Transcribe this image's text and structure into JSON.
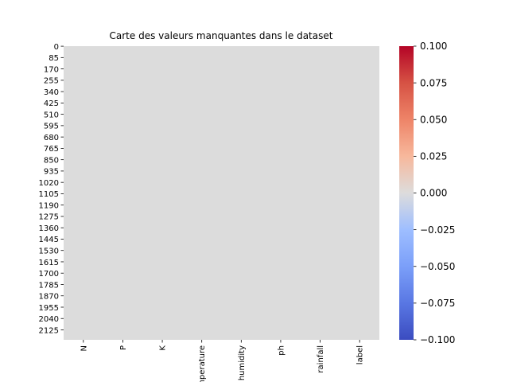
{
  "chart_data": {
    "type": "heatmap",
    "title": "Carte des valeurs manquantes dans le dataset",
    "xlabel": "",
    "ylabel": "",
    "x_categories": [
      "N",
      "P",
      "K",
      "temperature",
      "humidity",
      "ph",
      "rainfall",
      "label"
    ],
    "y_ticks": [
      0,
      85,
      170,
      255,
      340,
      425,
      510,
      595,
      680,
      765,
      850,
      935,
      1020,
      1105,
      1190,
      1275,
      1360,
      1445,
      1530,
      1615,
      1700,
      1785,
      1870,
      1955,
      2040,
      2125
    ],
    "row_count": 2200,
    "cell_value": 0.0,
    "colormap": "coolwarm",
    "cell_color": "#dcdcdc",
    "colorbar": {
      "vmin": -0.1,
      "vmax": 0.1,
      "ticks": [
        "0.100",
        "0.075",
        "0.050",
        "0.025",
        "0.000",
        "−0.025",
        "−0.050",
        "−0.075",
        "−0.100"
      ],
      "tick_values": [
        0.1,
        0.075,
        0.05,
        0.025,
        0.0,
        -0.025,
        -0.05,
        -0.075,
        -0.1
      ]
    }
  }
}
